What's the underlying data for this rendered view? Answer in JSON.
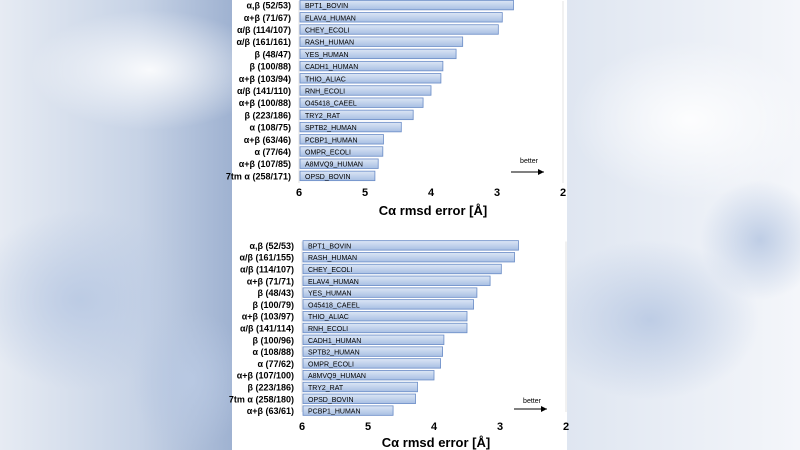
{
  "colors": {
    "bar_fill_top": "#dce6f5",
    "bar_fill_bottom": "#a8bfe3",
    "bar_stroke": "#6a8cc7",
    "text": "#000000",
    "background_blur": "#c9d4e6"
  },
  "chart_data": [
    {
      "type": "bar",
      "orientation": "horizontal",
      "x_reversed": true,
      "xlabel": "Cα rmsd error [Å]",
      "xlim": [
        6,
        2
      ],
      "xticks": [
        6,
        5,
        4,
        3,
        2
      ],
      "grid": false,
      "annotation": "better",
      "categories": [
        "α,β (52/53)",
        "α+β (71/67)",
        "α/β (114/107)",
        "α/β (161/161)",
        "β (48/47)",
        "β (100/88)",
        "α+β (103/94)",
        "α/β (141/110)",
        "α+β (100/88)",
        "β (223/186)",
        "α (108/75)",
        "α+β (63/46)",
        "α (77/64)",
        "α+β (107/85)",
        "7tm α (258/171)"
      ],
      "bar_labels": [
        "BPT1_BOVIN",
        "ELAV4_HUMAN",
        "CHEY_ECOLI",
        "RASH_HUMAN",
        "YES_HUMAN",
        "CADH1_HUMAN",
        "THIO_ALIAC",
        "RNH_ECOLI",
        "O45418_CAEEL",
        "TRY2_RAT",
        "SPTB2_HUMAN",
        "PCBP1_HUMAN",
        "OMPR_ECOLI",
        "A8MVQ9_HUMAN",
        "OPSD_BOVIN"
      ],
      "values": [
        2.75,
        2.92,
        2.98,
        3.52,
        3.62,
        3.82,
        3.85,
        4.0,
        4.12,
        4.27,
        4.45,
        4.72,
        4.73,
        4.8,
        4.85
      ]
    },
    {
      "type": "bar",
      "orientation": "horizontal",
      "x_reversed": true,
      "xlabel": "Cα rmsd error [Å]",
      "xlim": [
        6,
        2
      ],
      "xticks": [
        6,
        5,
        4,
        3,
        2
      ],
      "grid": false,
      "annotation": "better",
      "categories": [
        "α,β (52/53)",
        "α/β (161/155)",
        "α/β (114/107)",
        "α+β (71/71)",
        "β (48/43)",
        "β (100/79)",
        "α+β (103/97)",
        "α/β (141/114)",
        "β (100/96)",
        "α (108/88)",
        "α (77/62)",
        "α+β (107/100)",
        "β (223/186)",
        "7tm α (258/180)",
        "α+β (63/61)"
      ],
      "bar_labels": [
        "BPT1_BOVIN",
        "RASH_HUMAN",
        "CHEY_ECOLI",
        "ELAV4_HUMAN",
        "YES_HUMAN",
        "O45418_CAEEL",
        "THIO_ALIAC",
        "RNH_ECOLI",
        "CADH1_HUMAN",
        "SPTB2_HUMAN",
        "OMPR_ECOLI",
        "A8MVQ9_HUMAN",
        "TRY2_RAT",
        "OPSD_BOVIN",
        "PCBP1_HUMAN"
      ],
      "values": [
        2.72,
        2.78,
        2.98,
        3.15,
        3.35,
        3.4,
        3.5,
        3.5,
        3.85,
        3.87,
        3.9,
        4.0,
        4.25,
        4.28,
        4.62
      ]
    }
  ]
}
